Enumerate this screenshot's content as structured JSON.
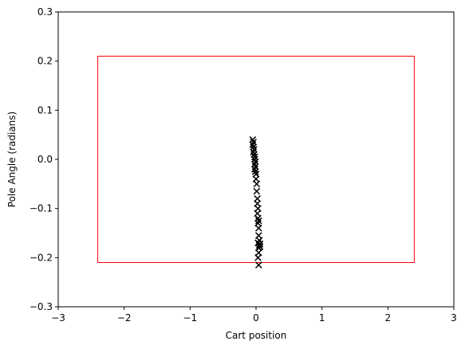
{
  "chart_data": {
    "type": "scatter",
    "title": "",
    "xlabel": "Cart position",
    "ylabel": "Pole Angle (radians)",
    "xlim": [
      -3,
      3
    ],
    "ylim": [
      -0.3,
      0.3
    ],
    "xticks": [
      "−3",
      "−2",
      "−1",
      "0",
      "1",
      "2",
      "3"
    ],
    "yticks": [
      "−0.3",
      "−0.2",
      "−0.1",
      "0.0",
      "0.1",
      "0.2",
      "0.3"
    ],
    "xtick_values": [
      -3,
      -2,
      -1,
      0,
      1,
      2,
      3
    ],
    "ytick_values": [
      -0.3,
      -0.2,
      -0.1,
      0.0,
      0.1,
      0.2,
      0.3
    ],
    "grid": false,
    "marker": "x",
    "marker_color": "#000000",
    "boundary": {
      "x": [
        -2.4,
        2.4
      ],
      "y": [
        -0.21,
        0.21
      ],
      "color": "#ff0000"
    },
    "points": [
      [
        -0.05,
        0.04
      ],
      [
        -0.04,
        0.035
      ],
      [
        -0.05,
        0.03
      ],
      [
        -0.04,
        0.025
      ],
      [
        -0.03,
        0.02
      ],
      [
        -0.04,
        0.015
      ],
      [
        -0.03,
        0.01
      ],
      [
        -0.02,
        0.005
      ],
      [
        -0.02,
        0.0
      ],
      [
        -0.01,
        -0.005
      ],
      [
        -0.02,
        -0.01
      ],
      [
        -0.01,
        -0.015
      ],
      [
        -0.02,
        -0.02
      ],
      [
        -0.01,
        -0.025
      ],
      [
        0.0,
        -0.03
      ],
      [
        0.0,
        -0.04
      ],
      [
        0.01,
        -0.05
      ],
      [
        0.01,
        -0.065
      ],
      [
        0.02,
        -0.08
      ],
      [
        0.02,
        -0.09
      ],
      [
        0.03,
        -0.1
      ],
      [
        0.02,
        -0.11
      ],
      [
        0.03,
        -0.12
      ],
      [
        0.04,
        -0.125
      ],
      [
        0.03,
        -0.13
      ],
      [
        0.04,
        -0.14
      ],
      [
        0.04,
        -0.155
      ],
      [
        0.05,
        -0.165
      ],
      [
        0.03,
        -0.17
      ],
      [
        0.06,
        -0.172
      ],
      [
        0.05,
        -0.175
      ],
      [
        0.04,
        -0.18
      ],
      [
        0.06,
        -0.178
      ],
      [
        0.04,
        -0.19
      ],
      [
        0.03,
        -0.2
      ],
      [
        0.04,
        -0.215
      ]
    ]
  }
}
